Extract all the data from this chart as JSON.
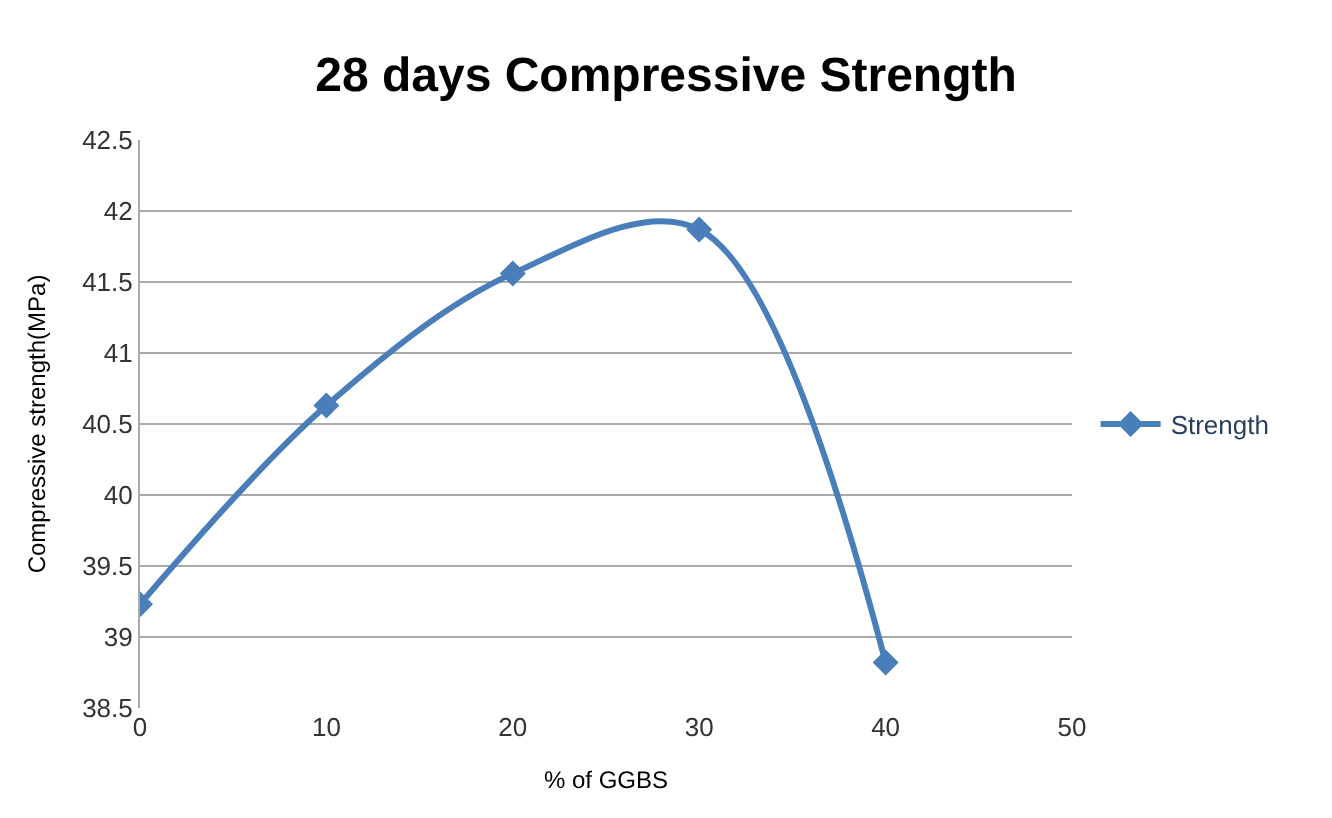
{
  "chart_data": {
    "type": "line",
    "title": "28 days Compressive Strength",
    "xlabel": "% of GGBS",
    "ylabel": "Compressive strength(MPa)",
    "x": [
      0,
      10,
      20,
      30,
      40
    ],
    "series": [
      {
        "name": "Strength",
        "color": "#4a7ebb",
        "values": [
          39.23,
          40.63,
          41.56,
          41.87,
          38.82
        ]
      }
    ],
    "xlim": [
      0,
      50
    ],
    "xticks": [
      0,
      10,
      20,
      30,
      40,
      50
    ],
    "ylim": [
      38.5,
      42.5
    ],
    "yticks": [
      38.5,
      39,
      39.5,
      40,
      40.5,
      41,
      41.5,
      42,
      42.5
    ],
    "grid": "y",
    "legend": "right",
    "marker": "diamond",
    "line_style": "solid"
  }
}
